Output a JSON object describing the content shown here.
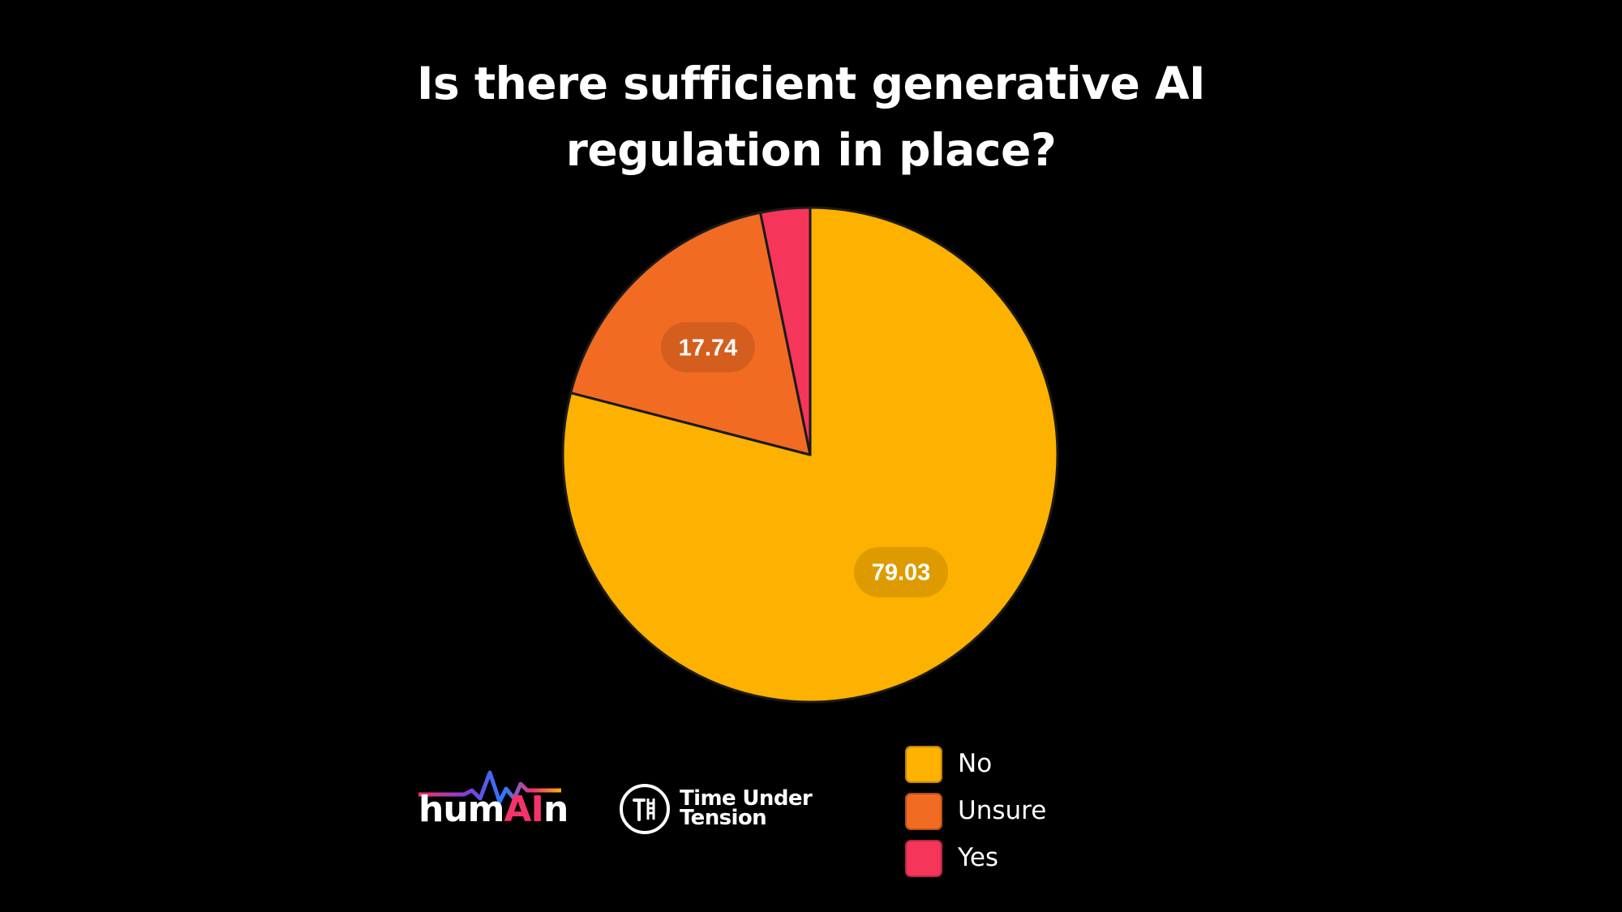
{
  "chart_data": {
    "type": "pie",
    "title": [
      "Is there sufficient generative AI",
      "regulation in place?"
    ],
    "slices": [
      {
        "label": "No",
        "value": 79.03,
        "color": "#fdb100",
        "show_value": true
      },
      {
        "label": "Unsure",
        "value": 17.74,
        "color": "#f26b22",
        "show_value": true
      },
      {
        "label": "Yes",
        "value": 3.23,
        "color": "#f6355a",
        "show_value": false
      }
    ],
    "start_angle_deg": 0,
    "direction": "clockwise",
    "legend_position": "bottom-right"
  },
  "logos": {
    "humain": {
      "pre": "hum",
      "ai": "AI",
      "post": "n"
    },
    "time_under_tension": {
      "line1": "Time Under",
      "line2": "Tension",
      "icon": "tut-logo-icon"
    }
  }
}
